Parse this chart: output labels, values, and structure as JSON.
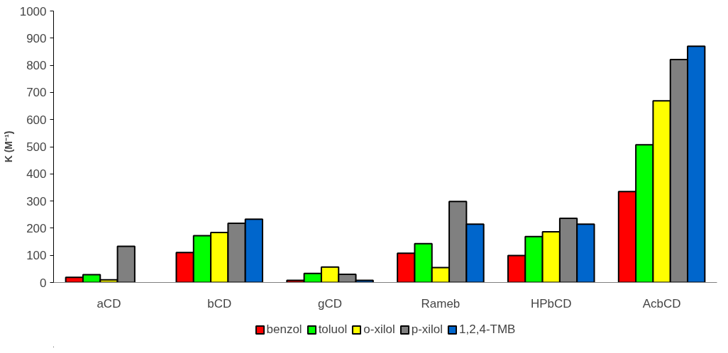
{
  "chart_data": {
    "type": "bar",
    "ylabel": "K (M⁻¹)",
    "categories": [
      "aCD",
      "bCD",
      "gCD",
      "Rameb",
      "HPbCD",
      "AcbCD"
    ],
    "series": [
      {
        "name": "benzol",
        "color": "#ff0000",
        "values": [
          19,
          110,
          8,
          108,
          99,
          335
        ]
      },
      {
        "name": "toluol",
        "color": "#00ff00",
        "values": [
          29,
          172,
          33,
          143,
          169,
          507
        ]
      },
      {
        "name": "o-xilol",
        "color": "#ffff00",
        "values": [
          10,
          184,
          57,
          55,
          187,
          669
        ]
      },
      {
        "name": "p-xilol",
        "color": "#808080",
        "values": [
          133,
          218,
          30,
          298,
          236,
          821
        ]
      },
      {
        "name": "1,2,4-TMB",
        "color": "#0066cc",
        "values": [
          null,
          233,
          8,
          215,
          215,
          870
        ]
      }
    ],
    "ylim": [
      0,
      1000
    ],
    "yticks": [
      0,
      100,
      200,
      300,
      400,
      500,
      600,
      700,
      800,
      900,
      1000
    ],
    "grid": false,
    "legend": "bottom"
  }
}
